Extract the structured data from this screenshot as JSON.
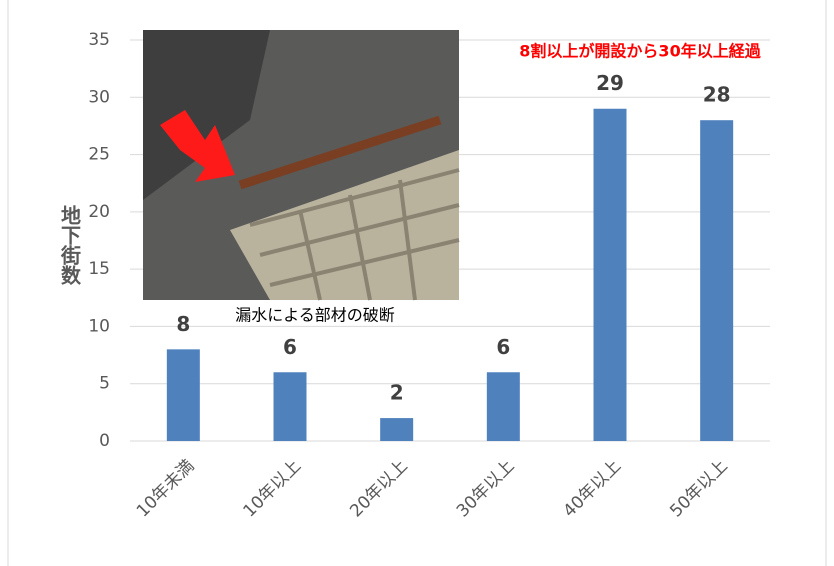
{
  "chart_data": {
    "type": "bar",
    "categories": [
      "10年未満",
      "10年以上",
      "20年以上",
      "30年以上",
      "40年以上",
      "50年以上"
    ],
    "values": [
      8,
      6,
      2,
      6,
      29,
      28
    ],
    "color": "#4f81bd",
    "ylim": [
      0,
      35
    ],
    "yticks": [
      0,
      5,
      10,
      15,
      20,
      25,
      30,
      35
    ],
    "grid": true,
    "y_label": "地下街数",
    "annotation": "8割以上が開設から30年以上経過",
    "photo_caption": "漏水による部材の破断"
  }
}
